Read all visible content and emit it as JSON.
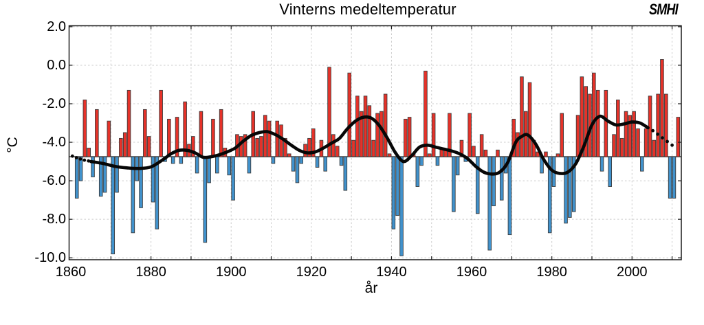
{
  "title": "Vinterns medeltemperatur",
  "logo": {
    "text": "SMHI"
  },
  "chart_data": {
    "type": "bar",
    "title": "Vinterns medeltemperatur",
    "xlabel": "år",
    "ylabel": "°C",
    "xlim": [
      1859.57,
      2012.3
    ],
    "ylim": [
      -10.1,
      2.05
    ],
    "grid": "dashed, every 2 degrees horizontal, every 10 years vertical",
    "legend": "none",
    "baseline_reference": -4.75,
    "colors": {
      "above_baseline_bar": "#e63229",
      "below_baseline_bar": "#4192cc",
      "bar_outline": "#3c3c3c",
      "trend_line": "#070707",
      "baseline_line": "#4a4a4a",
      "gridline": "#cccccc",
      "frame": "#1a1a1a",
      "text": "#000000"
    },
    "y_ticks": [
      {
        "value": 2.0,
        "label": "2.0"
      },
      {
        "value": 0.0,
        "label": "0.0"
      },
      {
        "value": -2.0,
        "label": "-2.0"
      },
      {
        "value": -4.0,
        "label": "-4.0"
      },
      {
        "value": -6.0,
        "label": "-6.0"
      },
      {
        "value": -8.0,
        "label": "-8.0"
      },
      {
        "value": -10.0,
        "label": "-10.0"
      }
    ],
    "x_ticks": [
      {
        "value": 1860,
        "label": "1860"
      },
      {
        "value": 1880,
        "label": "1880"
      },
      {
        "value": 1900,
        "label": "1900"
      },
      {
        "value": 1920,
        "label": "1920"
      },
      {
        "value": 1940,
        "label": "1940"
      },
      {
        "value": 1960,
        "label": "1960"
      },
      {
        "value": 1980,
        "label": "1980"
      },
      {
        "value": 2000,
        "label": "2000"
      }
    ],
    "x_gridlines": [
      1870,
      1880,
      1890,
      1900,
      1910,
      1920,
      1930,
      1940,
      1950,
      1960,
      1970,
      1980,
      1990,
      2000,
      2010
    ],
    "year_start": 1861,
    "year_end": 2011,
    "values": [
      -6.9,
      -6.0,
      -1.8,
      -4.3,
      -5.8,
      -2.3,
      -6.8,
      -6.6,
      -2.9,
      -9.8,
      -6.6,
      -3.8,
      -3.5,
      -1.3,
      -8.7,
      -6.0,
      -7.4,
      -2.3,
      -3.7,
      -7.1,
      -8.5,
      -1.3,
      -5.0,
      -2.8,
      -5.1,
      -2.7,
      -5.1,
      -1.9,
      -4.1,
      -3.7,
      -5.6,
      -2.4,
      -9.2,
      -6.1,
      -2.8,
      -5.6,
      -2.3,
      -4.3,
      -5.7,
      -7.0,
      -3.6,
      -3.7,
      -3.6,
      -5.6,
      -2.4,
      -3.8,
      -3.7,
      -2.6,
      -2.9,
      -5.1,
      -2.9,
      -3.1,
      -3.8,
      -4.6,
      -5.5,
      -6.1,
      -5.1,
      -4.1,
      -3.8,
      -3.3,
      -5.3,
      -3.9,
      -5.5,
      -0.1,
      -3.6,
      -4.2,
      -5.2,
      -6.5,
      -0.4,
      -3.9,
      -1.6,
      -2.4,
      -1.6,
      -2.1,
      -3.9,
      -2.5,
      -2.4,
      -1.5,
      -4.6,
      -8.5,
      -7.8,
      -9.9,
      -2.8,
      -2.7,
      -4.6,
      -6.3,
      -5.2,
      -0.3,
      -4.6,
      -2.5,
      -5.2,
      -4.3,
      -4.4,
      -2.5,
      -7.6,
      -5.7,
      -3.9,
      -5.0,
      -2.5,
      -4.2,
      -7.7,
      -3.6,
      -4.4,
      -9.6,
      -7.3,
      -4.4,
      -7.0,
      -5.6,
      -8.8,
      -2.8,
      -3.5,
      -0.6,
      -2.4,
      -0.9,
      -3.9,
      -4.5,
      -5.6,
      -4.5,
      -8.7,
      -6.3,
      -4.6,
      -2.5,
      -8.2,
      -7.9,
      -7.6,
      -2.6,
      -0.6,
      -1.1,
      -1.5,
      -0.4,
      -1.3,
      -5.5,
      -1.3,
      -6.3,
      -3.6,
      -1.8,
      -3.8,
      -2.4,
      -2.6,
      -2.4,
      -3.3,
      -5.5,
      -3.3,
      -1.6,
      -3.9,
      -1.5,
      0.3,
      -1.5,
      -6.9,
      -6.9,
      -2.7
    ],
    "trend": {
      "dotted_start": [
        [
          1860.4,
          -4.72
        ],
        [
          1861.4,
          -4.8
        ],
        [
          1862.4,
          -4.87
        ],
        [
          1863.4,
          -4.93
        ],
        [
          1864.4,
          -4.97
        ]
      ],
      "solid": [
        [
          1865,
          -5.0
        ],
        [
          1868,
          -5.1
        ],
        [
          1871,
          -5.25
        ],
        [
          1874,
          -5.33
        ],
        [
          1877,
          -5.36
        ],
        [
          1880,
          -5.28
        ],
        [
          1883,
          -4.9
        ],
        [
          1885,
          -4.6
        ],
        [
          1887,
          -4.42
        ],
        [
          1889,
          -4.42
        ],
        [
          1891,
          -4.55
        ],
        [
          1893,
          -4.78
        ],
        [
          1895,
          -4.75
        ],
        [
          1897,
          -4.65
        ],
        [
          1899,
          -4.5
        ],
        [
          1901,
          -4.3
        ],
        [
          1903,
          -3.95
        ],
        [
          1905,
          -3.65
        ],
        [
          1907,
          -3.5
        ],
        [
          1909,
          -3.45
        ],
        [
          1911,
          -3.6
        ],
        [
          1913,
          -3.85
        ],
        [
          1915,
          -4.15
        ],
        [
          1917,
          -4.42
        ],
        [
          1919,
          -4.55
        ],
        [
          1921,
          -4.5
        ],
        [
          1923,
          -4.3
        ],
        [
          1925,
          -4.05
        ],
        [
          1927,
          -3.8
        ],
        [
          1929,
          -3.3
        ],
        [
          1931,
          -2.9
        ],
        [
          1933,
          -2.7
        ],
        [
          1935,
          -2.75
        ],
        [
          1937,
          -3.15
        ],
        [
          1939,
          -3.8
        ],
        [
          1941,
          -4.55
        ],
        [
          1943,
          -5.0
        ],
        [
          1945,
          -4.7
        ],
        [
          1947,
          -4.25
        ],
        [
          1949,
          -4.15
        ],
        [
          1951,
          -4.25
        ],
        [
          1953,
          -4.35
        ],
        [
          1955,
          -4.45
        ],
        [
          1957,
          -4.6
        ],
        [
          1959,
          -4.85
        ],
        [
          1961,
          -5.25
        ],
        [
          1963,
          -5.55
        ],
        [
          1965,
          -5.65
        ],
        [
          1967,
          -5.55
        ],
        [
          1969,
          -5.05
        ],
        [
          1971,
          -4.0
        ],
        [
          1972.5,
          -3.7
        ],
        [
          1974,
          -3.62
        ],
        [
          1976,
          -4.1
        ],
        [
          1978,
          -4.9
        ],
        [
          1980,
          -5.45
        ],
        [
          1982,
          -5.62
        ],
        [
          1984,
          -5.55
        ],
        [
          1986,
          -5.1
        ],
        [
          1988,
          -4.2
        ],
        [
          1990,
          -3.1
        ],
        [
          1992,
          -2.65
        ],
        [
          1994,
          -2.9
        ],
        [
          1996,
          -3.1
        ],
        [
          1998,
          -3.05
        ],
        [
          2000,
          -2.95
        ],
        [
          2002,
          -3.0
        ],
        [
          2004,
          -3.25
        ]
      ],
      "dotted_end": [
        [
          2005.2,
          -3.4
        ],
        [
          2006.4,
          -3.58
        ],
        [
          2007.6,
          -3.77
        ],
        [
          2008.8,
          -3.96
        ],
        [
          2010.0,
          -4.15
        ]
      ]
    }
  }
}
